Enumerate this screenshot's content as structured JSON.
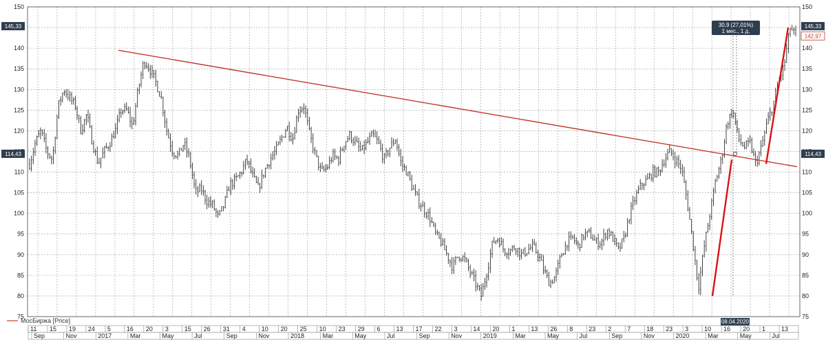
{
  "chart_data": {
    "type": "line",
    "style": "candlestick",
    "legend": {
      "label": "МосБиржа [Price]",
      "color": "#c0392b",
      "position": "bottom-left"
    },
    "y_axis": {
      "min": 75,
      "max": 150,
      "ticks": [
        75,
        80,
        85,
        90,
        95,
        100,
        105,
        110,
        115,
        120,
        125,
        130,
        135,
        140,
        145,
        150
      ],
      "side": "both"
    },
    "grid": true,
    "price_tags": {
      "last_price": "145,33",
      "current": "142,97",
      "level": "114,43"
    },
    "measure_tooltip": {
      "line1": "30,9 (27,01%)",
      "line2": "1 мес., 1 д."
    },
    "date_tag": "08.04.2020",
    "x_day_ticks": [
      "11",
      "15",
      "19",
      "24",
      "5",
      "16",
      "20",
      "3",
      "15",
      "26",
      "31",
      "4",
      "10",
      "20",
      "25",
      "10",
      "23",
      "29",
      "6",
      "13",
      "17",
      "22",
      "3",
      "14",
      "20",
      "1",
      "13",
      "26",
      "8",
      "23",
      "2",
      "7",
      "18",
      "23",
      "3",
      "10",
      "16",
      "20",
      "1",
      "13"
    ],
    "x_month_ticks": [
      "Sep",
      "Nov",
      "2017",
      "Mar",
      "May",
      "Jul",
      "Sep",
      "Nov",
      "2018",
      "Mar",
      "May",
      "Jul",
      "Sep",
      "Nov",
      "2019",
      "Mar",
      "May",
      "Jul",
      "Sep",
      "Nov",
      "2020",
      "Mar",
      "May",
      "Jul"
    ],
    "series": [
      {
        "points": [
          [
            0,
            112
          ],
          [
            1,
            117
          ],
          [
            2,
            120
          ],
          [
            3,
            115
          ],
          [
            4,
            113
          ],
          [
            5,
            126
          ],
          [
            6,
            130
          ],
          [
            7,
            128
          ],
          [
            8,
            126
          ],
          [
            9,
            120
          ],
          [
            10,
            124
          ],
          [
            11,
            117
          ],
          [
            12,
            112
          ],
          [
            13,
            115
          ],
          [
            14,
            117
          ],
          [
            15,
            120
          ],
          [
            16,
            125
          ],
          [
            17,
            125
          ],
          [
            18,
            121
          ],
          [
            19,
            130
          ],
          [
            20,
            137
          ],
          [
            21,
            135
          ],
          [
            22,
            132
          ],
          [
            23,
            128
          ],
          [
            24,
            120
          ],
          [
            25,
            115
          ],
          [
            26,
            114
          ],
          [
            27,
            117
          ],
          [
            28,
            113
          ],
          [
            29,
            105
          ],
          [
            30,
            106
          ],
          [
            31,
            103
          ],
          [
            32,
            102
          ],
          [
            33,
            99
          ],
          [
            34,
            102
          ],
          [
            35,
            107
          ],
          [
            36,
            108
          ],
          [
            37,
            110
          ],
          [
            38,
            113
          ],
          [
            39,
            109
          ],
          [
            40,
            106
          ],
          [
            41,
            110
          ],
          [
            42,
            113
          ],
          [
            43,
            115
          ],
          [
            44,
            118
          ],
          [
            45,
            121
          ],
          [
            46,
            118
          ],
          [
            47,
            125
          ],
          [
            48,
            126
          ],
          [
            49,
            119
          ],
          [
            50,
            114
          ],
          [
            51,
            110
          ],
          [
            52,
            111
          ],
          [
            53,
            114
          ],
          [
            54,
            113
          ],
          [
            55,
            117
          ],
          [
            56,
            119
          ],
          [
            57,
            117
          ],
          [
            58,
            115
          ],
          [
            59,
            117
          ],
          [
            60,
            119
          ],
          [
            61,
            117
          ],
          [
            62,
            113
          ],
          [
            63,
            116
          ],
          [
            64,
            118
          ],
          [
            65,
            112
          ],
          [
            66,
            110
          ],
          [
            67,
            106
          ],
          [
            68,
            103
          ],
          [
            69,
            101
          ],
          [
            70,
            99
          ],
          [
            71,
            95
          ],
          [
            72,
            93
          ],
          [
            73,
            90
          ],
          [
            74,
            87
          ],
          [
            75,
            90
          ],
          [
            76,
            89
          ],
          [
            77,
            86
          ],
          [
            78,
            83
          ],
          [
            79,
            80
          ],
          [
            80,
            86
          ],
          [
            81,
            93
          ],
          [
            82,
            94
          ],
          [
            83,
            91
          ],
          [
            84,
            91
          ],
          [
            85,
            92
          ],
          [
            86,
            90
          ],
          [
            87,
            91
          ],
          [
            88,
            92
          ],
          [
            89,
            90
          ],
          [
            90,
            86
          ],
          [
            91,
            83
          ],
          [
            92,
            85
          ],
          [
            93,
            90
          ],
          [
            94,
            93
          ],
          [
            95,
            94
          ],
          [
            96,
            92
          ],
          [
            97,
            95
          ],
          [
            98,
            95
          ],
          [
            99,
            93
          ],
          [
            100,
            93
          ],
          [
            101,
            96
          ],
          [
            102,
            94
          ],
          [
            103,
            91
          ],
          [
            104,
            94
          ],
          [
            105,
            100
          ],
          [
            106,
            104
          ],
          [
            107,
            107
          ],
          [
            108,
            108
          ],
          [
            109,
            110
          ],
          [
            110,
            110
          ],
          [
            111,
            113
          ],
          [
            112,
            115
          ],
          [
            113,
            113
          ],
          [
            114,
            111
          ],
          [
            115,
            103
          ],
          [
            116,
            93
          ],
          [
            117,
            82
          ],
          [
            118,
            92
          ],
          [
            119,
            100
          ],
          [
            120,
            108
          ],
          [
            121,
            113
          ],
          [
            122,
            122
          ],
          [
            123,
            125
          ],
          [
            124,
            118
          ],
          [
            125,
            116
          ],
          [
            126,
            117
          ],
          [
            127,
            112
          ],
          [
            128,
            116
          ],
          [
            129,
            122
          ],
          [
            130,
            126
          ],
          [
            131,
            132
          ],
          [
            132,
            136
          ],
          [
            133,
            145
          ],
          [
            134,
            143
          ]
        ]
      }
    ],
    "trend_lines": [
      {
        "from": [
          0,
          139.5
        ],
        "to": [
          1,
          111.3
        ],
        "style": "long-descending"
      },
      {
        "from": [
          0,
          80
        ],
        "to": [
          1,
          113
        ],
        "style": "short-rising-1"
      },
      {
        "from": [
          0,
          112
        ],
        "to": [
          1,
          145
        ],
        "style": "short-rising-2"
      }
    ]
  }
}
